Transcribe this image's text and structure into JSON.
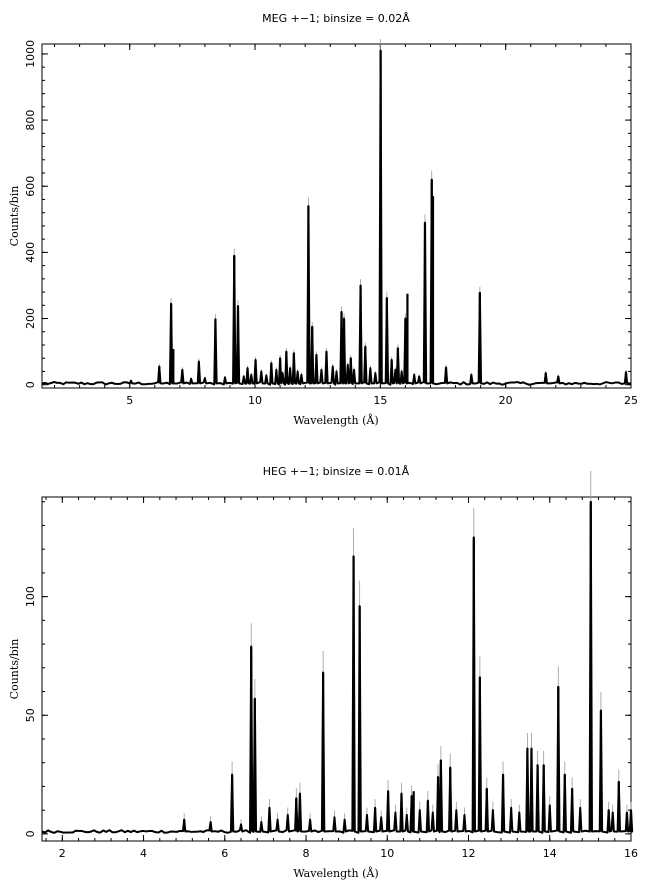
{
  "chart_data": [
    {
      "type": "line",
      "title": "MEG +−1; binsize = 0.02Å",
      "xlabel": "Wavelength (Å)",
      "ylabel": "Counts/bin",
      "xlim": [
        1.5,
        25
      ],
      "ylim": [
        -10,
        1030
      ],
      "xticks": [
        5,
        10,
        15,
        20,
        25
      ],
      "yticks": [
        0,
        200,
        400,
        600,
        800,
        1000
      ],
      "baseline": 4,
      "lines": [
        {
          "x": 5.05,
          "y": 12
        },
        {
          "x": 6.18,
          "y": 55
        },
        {
          "x": 6.65,
          "y": 245
        },
        {
          "x": 6.74,
          "y": 108
        },
        {
          "x": 7.1,
          "y": 45
        },
        {
          "x": 7.76,
          "y": 70
        },
        {
          "x": 8.42,
          "y": 198
        },
        {
          "x": 9.17,
          "y": 390
        },
        {
          "x": 9.32,
          "y": 238
        },
        {
          "x": 9.7,
          "y": 50
        },
        {
          "x": 10.02,
          "y": 75
        },
        {
          "x": 10.65,
          "y": 65
        },
        {
          "x": 11.0,
          "y": 80
        },
        {
          "x": 11.25,
          "y": 100
        },
        {
          "x": 11.55,
          "y": 95
        },
        {
          "x": 12.13,
          "y": 540
        },
        {
          "x": 12.28,
          "y": 175
        },
        {
          "x": 12.45,
          "y": 90
        },
        {
          "x": 12.85,
          "y": 100
        },
        {
          "x": 13.45,
          "y": 220
        },
        {
          "x": 13.55,
          "y": 200
        },
        {
          "x": 13.82,
          "y": 80
        },
        {
          "x": 14.21,
          "y": 300
        },
        {
          "x": 14.4,
          "y": 115
        },
        {
          "x": 15.01,
          "y": 1010
        },
        {
          "x": 15.26,
          "y": 262
        },
        {
          "x": 15.45,
          "y": 75
        },
        {
          "x": 15.7,
          "y": 110
        },
        {
          "x": 16.0,
          "y": 200
        },
        {
          "x": 16.08,
          "y": 275
        },
        {
          "x": 16.78,
          "y": 490
        },
        {
          "x": 17.05,
          "y": 620
        },
        {
          "x": 17.1,
          "y": 570
        },
        {
          "x": 17.62,
          "y": 52
        },
        {
          "x": 18.63,
          "y": 30
        },
        {
          "x": 18.97,
          "y": 278
        },
        {
          "x": 21.6,
          "y": 35
        },
        {
          "x": 22.1,
          "y": 25
        },
        {
          "x": 24.8,
          "y": 38
        }
      ],
      "noise": [
        {
          "x": 9.55,
          "y": 25
        },
        {
          "x": 9.85,
          "y": 30
        },
        {
          "x": 10.25,
          "y": 40
        },
        {
          "x": 10.45,
          "y": 28
        },
        {
          "x": 10.85,
          "y": 45
        },
        {
          "x": 11.1,
          "y": 35
        },
        {
          "x": 11.4,
          "y": 50
        },
        {
          "x": 11.7,
          "y": 40
        },
        {
          "x": 11.85,
          "y": 30
        },
        {
          "x": 12.65,
          "y": 45
        },
        {
          "x": 13.1,
          "y": 55
        },
        {
          "x": 13.25,
          "y": 40
        },
        {
          "x": 13.7,
          "y": 60
        },
        {
          "x": 13.95,
          "y": 45
        },
        {
          "x": 14.6,
          "y": 50
        },
        {
          "x": 14.8,
          "y": 35
        },
        {
          "x": 15.6,
          "y": 45
        },
        {
          "x": 15.85,
          "y": 40
        },
        {
          "x": 16.35,
          "y": 30
        },
        {
          "x": 16.55,
          "y": 25
        },
        {
          "x": 8.0,
          "y": 20
        },
        {
          "x": 8.8,
          "y": 22
        },
        {
          "x": 7.45,
          "y": 18
        }
      ]
    },
    {
      "type": "line",
      "title": "HEG +−1; binsize = 0.01Å",
      "xlabel": "Wavelength (Å)",
      "ylabel": "Counts/bin",
      "xlim": [
        1.5,
        16
      ],
      "ylim": [
        -3,
        142
      ],
      "xticks": [
        2,
        4,
        6,
        8,
        10,
        12,
        14,
        16
      ],
      "yticks": [
        0,
        50,
        100
      ],
      "baseline": 1,
      "lines": [
        {
          "x": 5.0,
          "y": 6
        },
        {
          "x": 5.65,
          "y": 5
        },
        {
          "x": 6.18,
          "y": 25
        },
        {
          "x": 6.65,
          "y": 79
        },
        {
          "x": 6.74,
          "y": 57
        },
        {
          "x": 7.1,
          "y": 11
        },
        {
          "x": 7.76,
          "y": 15
        },
        {
          "x": 7.85,
          "y": 17
        },
        {
          "x": 8.42,
          "y": 68
        },
        {
          "x": 9.17,
          "y": 117
        },
        {
          "x": 9.32,
          "y": 96
        },
        {
          "x": 9.7,
          "y": 11
        },
        {
          "x": 10.02,
          "y": 18
        },
        {
          "x": 10.35,
          "y": 17
        },
        {
          "x": 10.6,
          "y": 16
        },
        {
          "x": 10.65,
          "y": 18
        },
        {
          "x": 11.0,
          "y": 14
        },
        {
          "x": 11.25,
          "y": 24
        },
        {
          "x": 11.32,
          "y": 31
        },
        {
          "x": 11.55,
          "y": 28
        },
        {
          "x": 12.13,
          "y": 125
        },
        {
          "x": 12.28,
          "y": 66
        },
        {
          "x": 12.45,
          "y": 19
        },
        {
          "x": 12.85,
          "y": 25
        },
        {
          "x": 13.45,
          "y": 36
        },
        {
          "x": 13.55,
          "y": 36
        },
        {
          "x": 13.7,
          "y": 29
        },
        {
          "x": 13.85,
          "y": 29
        },
        {
          "x": 14.21,
          "y": 62
        },
        {
          "x": 14.37,
          "y": 25
        },
        {
          "x": 14.55,
          "y": 19
        },
        {
          "x": 15.01,
          "y": 140
        },
        {
          "x": 15.26,
          "y": 52
        },
        {
          "x": 15.45,
          "y": 10
        },
        {
          "x": 15.7,
          "y": 22
        },
        {
          "x": 15.9,
          "y": 9
        },
        {
          "x": 16.0,
          "y": 10
        }
      ],
      "noise": [
        {
          "x": 7.3,
          "y": 6
        },
        {
          "x": 7.55,
          "y": 8
        },
        {
          "x": 8.1,
          "y": 6
        },
        {
          "x": 8.7,
          "y": 7
        },
        {
          "x": 8.95,
          "y": 6
        },
        {
          "x": 9.5,
          "y": 8
        },
        {
          "x": 9.85,
          "y": 7
        },
        {
          "x": 10.2,
          "y": 9
        },
        {
          "x": 10.48,
          "y": 8
        },
        {
          "x": 10.8,
          "y": 10
        },
        {
          "x": 11.12,
          "y": 9
        },
        {
          "x": 11.7,
          "y": 10
        },
        {
          "x": 11.9,
          "y": 8
        },
        {
          "x": 12.6,
          "y": 10
        },
        {
          "x": 13.05,
          "y": 11
        },
        {
          "x": 13.25,
          "y": 9
        },
        {
          "x": 14.0,
          "y": 12
        },
        {
          "x": 14.75,
          "y": 11
        },
        {
          "x": 15.55,
          "y": 9
        },
        {
          "x": 6.4,
          "y": 4
        },
        {
          "x": 6.9,
          "y": 5
        }
      ]
    }
  ]
}
